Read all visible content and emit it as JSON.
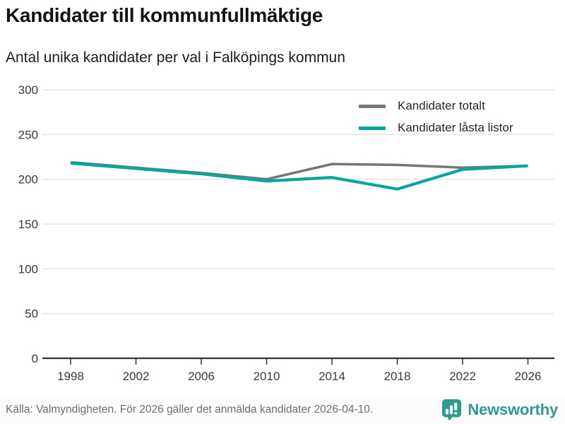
{
  "header": {
    "title": "Kandidater till kommunfullmäktige",
    "subtitle": "Antal unika kandidater per val i Falköpings kommun"
  },
  "chart_data": {
    "type": "line",
    "categories": [
      "1998",
      "2002",
      "2006",
      "2010",
      "2014",
      "2018",
      "2022",
      "2026"
    ],
    "series": [
      {
        "name": "Kandidater totalt",
        "color": "#757679",
        "values": [
          219,
          213,
          207,
          200,
          217,
          216,
          213,
          215
        ]
      },
      {
        "name": "Kandidater låsta listor",
        "color": "#00a79b",
        "values": [
          218,
          212,
          206,
          198,
          202,
          189,
          211,
          215
        ]
      }
    ],
    "title": "Kandidater till kommunfullmäktige",
    "xlabel": "",
    "ylabel": "",
    "ylim": [
      0,
      300
    ],
    "yticks": [
      0,
      50,
      100,
      150,
      200,
      250,
      300
    ],
    "grid": true,
    "legend_position": "top-right"
  },
  "colors": {
    "grid": "#e3e3e3",
    "axis": "#333333",
    "tick_text": "#3a3a3a",
    "brand_teal": "#2f9a90"
  },
  "footer": {
    "source": "Källa: Valmyndigheten. För 2026 gäller det anmälda kandidater 2026-04-10.",
    "brand": "Newsworthy",
    "logo_icon": "speech-bubble-bar-chart"
  }
}
